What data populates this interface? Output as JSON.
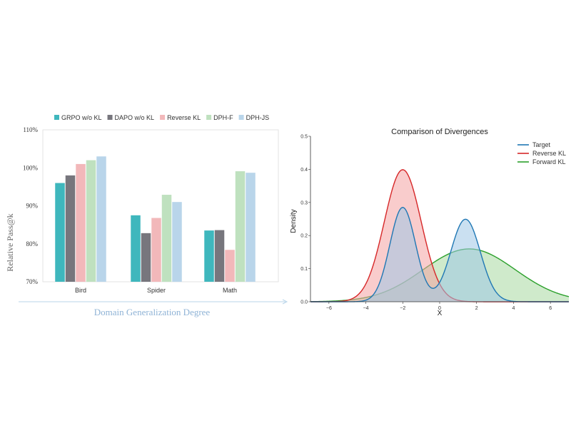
{
  "chart_data": [
    {
      "type": "bar",
      "title": "",
      "xlabel": "Domain Generalization Degree",
      "ylabel": "Relative Pass@k",
      "ylim": [
        70,
        110
      ],
      "yticks": [
        "70%",
        "80%",
        "90%",
        "100%",
        "110%"
      ],
      "categories": [
        "Bird",
        "Spider",
        "Math"
      ],
      "legend_position": "top",
      "series": [
        {
          "name": "GRPO w/o KL",
          "color": "#3fb7bd",
          "values": [
            96,
            87.5,
            83.5
          ]
        },
        {
          "name": "DAPO w/o KL",
          "color": "#77767d",
          "values": [
            98,
            82.8,
            83.6
          ]
        },
        {
          "name": "Reverse KL",
          "color": "#f2b8ba",
          "values": [
            101,
            86.8,
            78.4
          ]
        },
        {
          "name": "DPH-F",
          "color": "#bfe1bf",
          "values": [
            102,
            92.9,
            99.1
          ]
        },
        {
          "name": "DPH-JS",
          "color": "#b9d5ea",
          "values": [
            103,
            91,
            98.7
          ]
        }
      ]
    },
    {
      "type": "area",
      "title": "Comparison of Divergences",
      "xlabel": "X",
      "ylabel": "Density",
      "xlim": [
        -7,
        7
      ],
      "ylim": [
        0,
        0.5
      ],
      "xticks": [
        "−6",
        "−4",
        "−2",
        "0",
        "2",
        "4",
        "6"
      ],
      "yticks": [
        "0.0",
        "0.1",
        "0.2",
        "0.3",
        "0.4",
        "0.5"
      ],
      "legend_position": "top-right",
      "series": [
        {
          "name": "Target",
          "color": "#1f77b4",
          "fill": "#9ec7e6",
          "description": "mixture 0.5·N(-2,0.7) + 0.5·N(1.4,0.8)",
          "peaks": [
            [
              -2,
              0.285
            ],
            [
              1.4,
              0.25
            ]
          ]
        },
        {
          "name": "Reverse KL",
          "color": "#d62728",
          "fill": "#f4a3a3",
          "description": "N(-2,1.0)",
          "peaks": [
            [
              -2,
              0.4
            ]
          ]
        },
        {
          "name": "Forward KL",
          "color": "#2ca02c",
          "fill": "#a8d8a0",
          "description": "N(1.6,2.5)",
          "peaks": [
            [
              1.6,
              0.16
            ]
          ]
        }
      ]
    }
  ]
}
